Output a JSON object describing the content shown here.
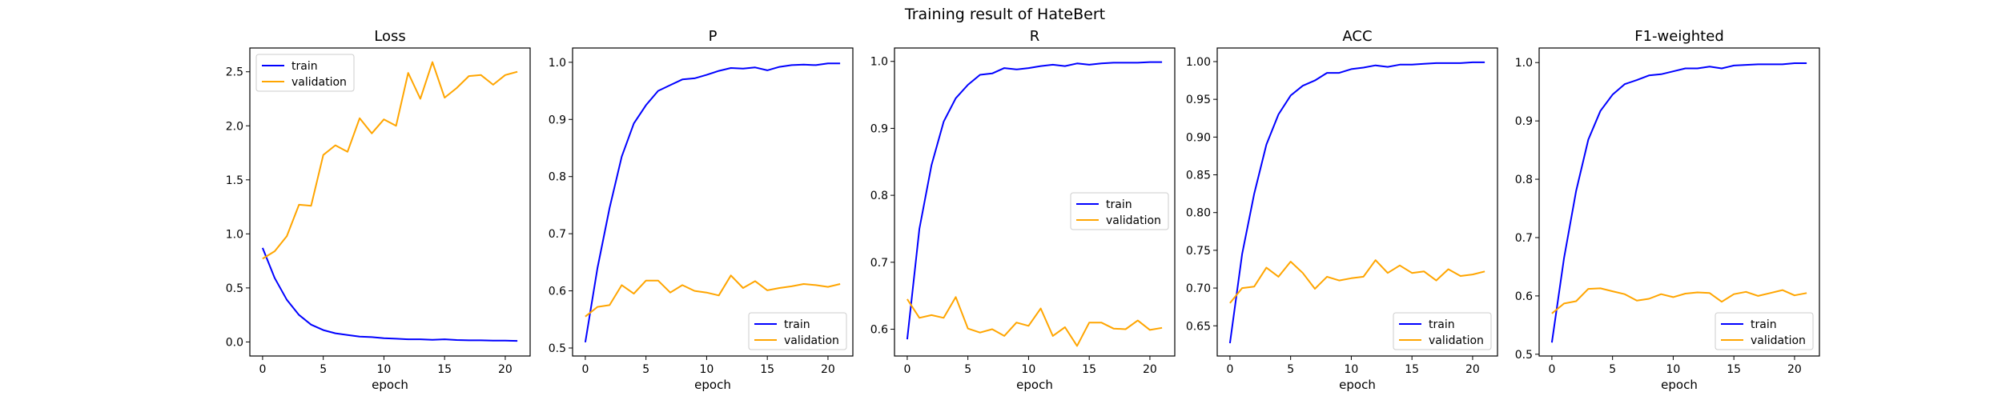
{
  "figure": {
    "suptitle": "Training result of HateBert"
  },
  "colors": {
    "train": "#0000ff",
    "validation": "#ffa500"
  },
  "chart_data": [
    {
      "type": "line",
      "title": "Loss",
      "xlabel": "epoch",
      "ylabel": "",
      "x": [
        0,
        1,
        2,
        3,
        4,
        5,
        6,
        7,
        8,
        9,
        10,
        11,
        12,
        13,
        14,
        15,
        16,
        17,
        18,
        19,
        20,
        21
      ],
      "xlim": [
        -1.05,
        22.05
      ],
      "ylim": [
        -0.13,
        2.72
      ],
      "xticks": [
        0,
        5,
        10,
        15,
        20
      ],
      "yticks": [
        0.0,
        0.5,
        1.0,
        1.5,
        2.0,
        2.5
      ],
      "ytick_labels": [
        "0.0",
        "0.5",
        "1.0",
        "1.5",
        "2.0",
        "2.5"
      ],
      "legend": "upper-left",
      "series": [
        {
          "name": "train",
          "color": "#0000ff",
          "values": [
            0.87,
            0.59,
            0.39,
            0.25,
            0.16,
            0.11,
            0.08,
            0.065,
            0.05,
            0.045,
            0.035,
            0.03,
            0.025,
            0.025,
            0.02,
            0.025,
            0.018,
            0.015,
            0.015,
            0.013,
            0.012,
            0.01
          ]
        },
        {
          "name": "validation",
          "color": "#ffa500",
          "values": [
            0.77,
            0.84,
            0.98,
            1.27,
            1.26,
            1.73,
            1.82,
            1.76,
            2.07,
            1.93,
            2.06,
            2.0,
            2.49,
            2.25,
            2.59,
            2.26,
            2.35,
            2.46,
            2.47,
            2.38,
            2.47,
            2.5
          ]
        }
      ]
    },
    {
      "type": "line",
      "title": "P",
      "xlabel": "epoch",
      "ylabel": "",
      "x": [
        0,
        1,
        2,
        3,
        4,
        5,
        6,
        7,
        8,
        9,
        10,
        11,
        12,
        13,
        14,
        15,
        16,
        17,
        18,
        19,
        20,
        21
      ],
      "xlim": [
        -1.05,
        22.05
      ],
      "ylim": [
        0.486,
        1.025
      ],
      "xticks": [
        0,
        5,
        10,
        15,
        20
      ],
      "yticks": [
        0.5,
        0.6,
        0.7,
        0.8,
        0.9,
        1.0
      ],
      "ytick_labels": [
        "0.5",
        "0.6",
        "0.7",
        "0.8",
        "0.9",
        "1.0"
      ],
      "legend": "lower-right",
      "series": [
        {
          "name": "train",
          "color": "#0000ff",
          "values": [
            0.51,
            0.64,
            0.745,
            0.835,
            0.893,
            0.925,
            0.95,
            0.96,
            0.97,
            0.972,
            0.978,
            0.985,
            0.99,
            0.989,
            0.991,
            0.986,
            0.992,
            0.995,
            0.996,
            0.995,
            0.998,
            0.998
          ]
        },
        {
          "name": "validation",
          "color": "#ffa500",
          "values": [
            0.555,
            0.572,
            0.575,
            0.61,
            0.595,
            0.618,
            0.618,
            0.597,
            0.61,
            0.6,
            0.597,
            0.592,
            0.627,
            0.605,
            0.617,
            0.601,
            0.605,
            0.608,
            0.612,
            0.61,
            0.607,
            0.612
          ]
        }
      ]
    },
    {
      "type": "line",
      "title": "R",
      "xlabel": "epoch",
      "ylabel": "",
      "x": [
        0,
        1,
        2,
        3,
        4,
        5,
        6,
        7,
        8,
        9,
        10,
        11,
        12,
        13,
        14,
        15,
        16,
        17,
        18,
        19,
        20,
        21
      ],
      "xlim": [
        -1.05,
        22.05
      ],
      "ylim": [
        0.56,
        1.02
      ],
      "xticks": [
        0,
        5,
        10,
        15,
        20
      ],
      "yticks": [
        0.6,
        0.7,
        0.8,
        0.9,
        1.0
      ],
      "ytick_labels": [
        "0.6",
        "0.7",
        "0.8",
        "0.9",
        "1.0"
      ],
      "legend": "center-right",
      "series": [
        {
          "name": "train",
          "color": "#0000ff",
          "values": [
            0.585,
            0.75,
            0.845,
            0.91,
            0.945,
            0.965,
            0.98,
            0.982,
            0.99,
            0.988,
            0.99,
            0.993,
            0.995,
            0.993,
            0.997,
            0.995,
            0.997,
            0.998,
            0.998,
            0.998,
            0.999,
            0.999
          ]
        },
        {
          "name": "validation",
          "color": "#ffa500",
          "values": [
            0.645,
            0.617,
            0.621,
            0.617,
            0.648,
            0.601,
            0.595,
            0.6,
            0.59,
            0.61,
            0.605,
            0.631,
            0.59,
            0.603,
            0.575,
            0.61,
            0.61,
            0.601,
            0.6,
            0.613,
            0.599,
            0.602
          ]
        }
      ]
    },
    {
      "type": "line",
      "title": "ACC",
      "xlabel": "epoch",
      "ylabel": "",
      "x": [
        0,
        1,
        2,
        3,
        4,
        5,
        6,
        7,
        8,
        9,
        10,
        11,
        12,
        13,
        14,
        15,
        16,
        17,
        18,
        19,
        20,
        21
      ],
      "xlim": [
        -1.05,
        22.05
      ],
      "ylim": [
        0.61,
        1.018
      ],
      "xticks": [
        0,
        5,
        10,
        15,
        20
      ],
      "yticks": [
        0.65,
        0.7,
        0.75,
        0.8,
        0.85,
        0.9,
        0.95,
        1.0
      ],
      "ytick_labels": [
        "0.65",
        "0.70",
        "0.75",
        "0.80",
        "0.85",
        "0.90",
        "0.95",
        "1.00"
      ],
      "legend": "lower-right",
      "series": [
        {
          "name": "train",
          "color": "#0000ff",
          "values": [
            0.627,
            0.745,
            0.825,
            0.89,
            0.93,
            0.955,
            0.968,
            0.975,
            0.985,
            0.985,
            0.99,
            0.992,
            0.995,
            0.993,
            0.996,
            0.996,
            0.997,
            0.998,
            0.998,
            0.998,
            0.999,
            0.999
          ]
        },
        {
          "name": "validation",
          "color": "#ffa500",
          "values": [
            0.68,
            0.7,
            0.702,
            0.727,
            0.715,
            0.735,
            0.72,
            0.699,
            0.715,
            0.71,
            0.713,
            0.715,
            0.737,
            0.72,
            0.73,
            0.72,
            0.722,
            0.71,
            0.725,
            0.716,
            0.718,
            0.722
          ]
        }
      ]
    },
    {
      "type": "line",
      "title": "F1-weighted",
      "xlabel": "epoch",
      "ylabel": "",
      "x": [
        0,
        1,
        2,
        3,
        4,
        5,
        6,
        7,
        8,
        9,
        10,
        11,
        12,
        13,
        14,
        15,
        16,
        17,
        18,
        19,
        20,
        21
      ],
      "xlim": [
        -1.05,
        22.05
      ],
      "ylim": [
        0.497,
        1.025
      ],
      "xticks": [
        0,
        5,
        10,
        15,
        20
      ],
      "yticks": [
        0.5,
        0.6,
        0.7,
        0.8,
        0.9,
        1.0
      ],
      "ytick_labels": [
        "0.5",
        "0.6",
        "0.7",
        "0.8",
        "0.9",
        "1.0"
      ],
      "legend": "lower-right",
      "series": [
        {
          "name": "train",
          "color": "#0000ff",
          "values": [
            0.52,
            0.665,
            0.78,
            0.868,
            0.917,
            0.945,
            0.963,
            0.97,
            0.978,
            0.98,
            0.985,
            0.99,
            0.99,
            0.993,
            0.99,
            0.995,
            0.996,
            0.997,
            0.997,
            0.997,
            0.999,
            0.999
          ]
        },
        {
          "name": "validation",
          "color": "#ffa500",
          "values": [
            0.57,
            0.587,
            0.591,
            0.612,
            0.613,
            0.608,
            0.603,
            0.592,
            0.595,
            0.603,
            0.598,
            0.604,
            0.606,
            0.605,
            0.59,
            0.603,
            0.607,
            0.6,
            0.605,
            0.61,
            0.601,
            0.605
          ]
        }
      ]
    }
  ]
}
